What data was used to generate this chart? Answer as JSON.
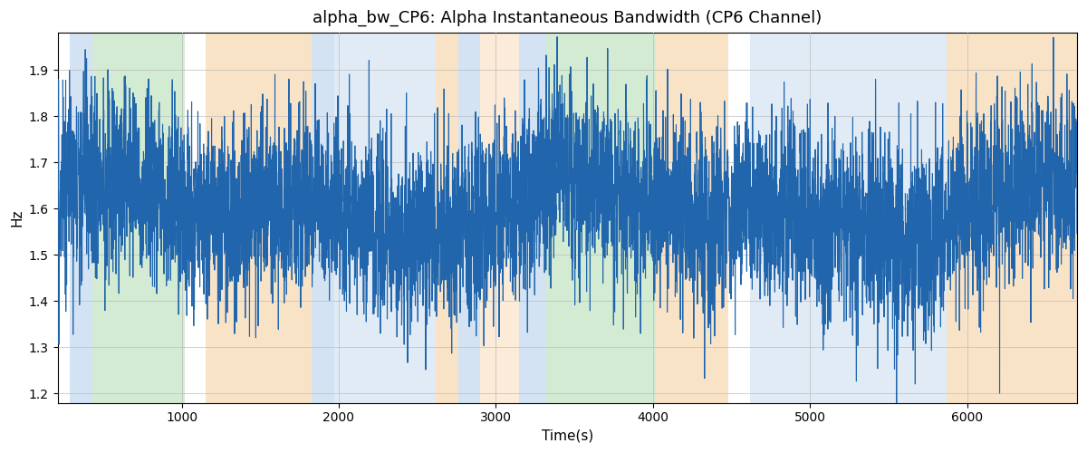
{
  "title": "alpha_bw_CP6: Alpha Instantaneous Bandwidth (CP6 Channel)",
  "xlabel": "Time(s)",
  "ylabel": "Hz",
  "xlim": [
    210,
    6700
  ],
  "ylim": [
    1.18,
    1.98
  ],
  "line_color": "#2166ac",
  "line_width": 0.8,
  "bg_color": "#ffffff",
  "grid_color": "#bbbbbb",
  "figsize": [
    12.0,
    5.0
  ],
  "dpi": 100,
  "regions": [
    {
      "xmin": 290,
      "xmax": 430,
      "color": "#a8c8e8",
      "alpha": 0.5
    },
    {
      "xmin": 430,
      "xmax": 1020,
      "color": "#a8d8a8",
      "alpha": 0.5
    },
    {
      "xmin": 1150,
      "xmax": 1830,
      "color": "#f5c890",
      "alpha": 0.5
    },
    {
      "xmin": 1830,
      "xmax": 1970,
      "color": "#a8c8e8",
      "alpha": 0.5
    },
    {
      "xmin": 1970,
      "xmax": 2620,
      "color": "#a8c8e8",
      "alpha": 0.35
    },
    {
      "xmin": 2620,
      "xmax": 2760,
      "color": "#f5c890",
      "alpha": 0.5
    },
    {
      "xmin": 2760,
      "xmax": 2900,
      "color": "#a8c8e8",
      "alpha": 0.5
    },
    {
      "xmin": 2900,
      "xmax": 3150,
      "color": "#f5c890",
      "alpha": 0.35
    },
    {
      "xmin": 3150,
      "xmax": 3320,
      "color": "#a8c8e8",
      "alpha": 0.5
    },
    {
      "xmin": 3320,
      "xmax": 4020,
      "color": "#a8d8a8",
      "alpha": 0.5
    },
    {
      "xmin": 4020,
      "xmax": 4100,
      "color": "#f5c890",
      "alpha": 0.5
    },
    {
      "xmin": 4100,
      "xmax": 4480,
      "color": "#f5c890",
      "alpha": 0.5
    },
    {
      "xmin": 4620,
      "xmax": 5870,
      "color": "#a8c8e8",
      "alpha": 0.35
    },
    {
      "xmin": 5870,
      "xmax": 6030,
      "color": "#f5c890",
      "alpha": 0.5
    },
    {
      "xmin": 6030,
      "xmax": 6700,
      "color": "#f5c890",
      "alpha": 0.5
    }
  ],
  "seed": 2023,
  "n_points": 6500,
  "mean_val": 1.6,
  "noise_std": 0.1,
  "smooth_sigma": 3.5
}
